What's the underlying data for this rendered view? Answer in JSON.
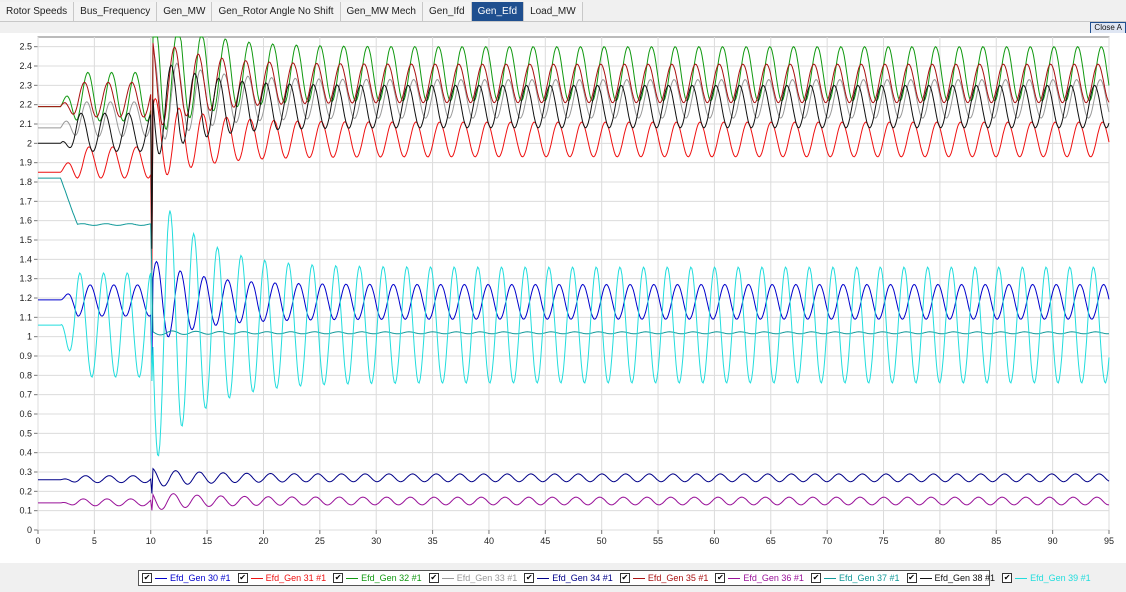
{
  "tabs": [
    {
      "label": "Rotor Speeds",
      "active": false
    },
    {
      "label": "Bus_Frequency",
      "active": false
    },
    {
      "label": "Gen_MW",
      "active": false
    },
    {
      "label": "Gen_Rotor Angle No Shift",
      "active": false
    },
    {
      "label": "Gen_MW Mech",
      "active": false
    },
    {
      "label": "Gen_Ifd",
      "active": false
    },
    {
      "label": "Gen_Efd",
      "active": true
    },
    {
      "label": "Load_MW",
      "active": false
    }
  ],
  "close_label": "Close A",
  "legend": {
    "check_mark": "✔",
    "items": [
      {
        "label": "Efd_Gen 30 #1",
        "color": "#0000cc"
      },
      {
        "label": "Efd_Gen 31 #1",
        "color": "#ee1111"
      },
      {
        "label": "Efd_Gen 32 #1",
        "color": "#119911"
      },
      {
        "label": "Efd_Gen 33 #1",
        "color": "#999999"
      },
      {
        "label": "Efd_Gen 34 #1",
        "color": "#000088"
      },
      {
        "label": "Efd_Gen 35 #1",
        "color": "#aa1111"
      },
      {
        "label": "Efd_Gen 36 #1",
        "color": "#991199"
      },
      {
        "label": "Efd_Gen 37 #1",
        "color": "#119999"
      },
      {
        "label": "Efd_Gen 38 #1",
        "color": "#111111"
      },
      {
        "label": "Efd_Gen 39 #1",
        "color": "#22dddd"
      }
    ]
  },
  "chart_data": {
    "type": "line",
    "title": "",
    "xlabel": "",
    "ylabel": "",
    "xlim": [
      0,
      95
    ],
    "ylim": [
      0,
      2.55
    ],
    "xticks": [
      0,
      5,
      10,
      15,
      20,
      25,
      30,
      35,
      40,
      45,
      50,
      55,
      60,
      65,
      70,
      75,
      80,
      85,
      90,
      95
    ],
    "yticks": [
      0,
      0.1,
      0.2,
      0.3,
      0.4,
      0.5,
      0.6,
      0.7,
      0.8,
      0.9,
      1,
      1.1,
      1.2,
      1.3,
      1.4,
      1.5,
      1.6,
      1.7,
      1.8,
      1.9,
      2,
      2.1,
      2.2,
      2.3,
      2.4,
      2.5
    ],
    "grid": true,
    "legend_position": "bottom",
    "fault_time": 10,
    "oscillation_period": 2.1,
    "series": [
      {
        "name": "Efd_Gen 30 #1",
        "color": "#0000cc",
        "initial": 1.19,
        "post_mean": 1.18,
        "post_amp": 0.09,
        "post_min": 1.09,
        "post_max": 1.27
      },
      {
        "name": "Efd_Gen 31 #1",
        "color": "#ee1111",
        "initial": 1.85,
        "post_mean": 2.02,
        "post_amp": 0.09,
        "post_min": 1.93,
        "post_max": 2.11
      },
      {
        "name": "Efd_Gen 32 #1",
        "color": "#119911",
        "initial": 2.19,
        "post_mean": 2.36,
        "post_amp": 0.14,
        "post_min": 2.22,
        "post_max": 2.5
      },
      {
        "name": "Efd_Gen 33 #1",
        "color": "#999999",
        "initial": 2.08,
        "post_mean": 2.23,
        "post_amp": 0.1,
        "post_min": 2.13,
        "post_max": 2.33
      },
      {
        "name": "Efd_Gen 34 #1",
        "color": "#000088",
        "initial": 0.26,
        "post_mean": 0.27,
        "post_amp": 0.02,
        "post_min": 0.25,
        "post_max": 0.29
      },
      {
        "name": "Efd_Gen 35 #1",
        "color": "#aa1111",
        "initial": 2.19,
        "post_mean": 2.31,
        "post_amp": 0.1,
        "post_min": 2.21,
        "post_max": 2.41
      },
      {
        "name": "Efd_Gen 36 #1",
        "color": "#991199",
        "initial": 0.14,
        "post_mean": 0.15,
        "post_amp": 0.02,
        "post_min": 0.13,
        "post_max": 0.17
      },
      {
        "name": "Efd_Gen 37 #1",
        "color": "#119999",
        "initial": 1.82,
        "post_mean": 1.02,
        "post_amp": 0.005,
        "post_min": 1.015,
        "post_max": 1.025
      },
      {
        "name": "Efd_Gen 38 #1",
        "color": "#111111",
        "initial": 2.0,
        "post_mean": 2.19,
        "post_amp": 0.11,
        "post_min": 2.08,
        "post_max": 2.3
      },
      {
        "name": "Efd_Gen 39 #1",
        "color": "#22dddd",
        "initial": 1.06,
        "post_mean": 1.06,
        "post_amp": 0.3,
        "post_min": 0.76,
        "post_max": 1.36
      }
    ]
  }
}
